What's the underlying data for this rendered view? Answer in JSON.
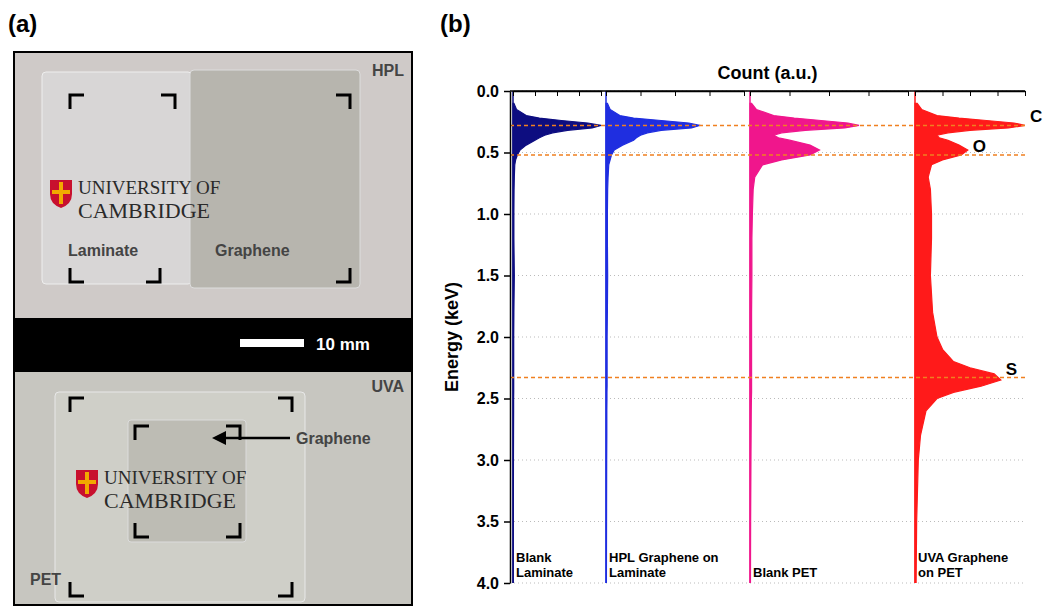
{
  "panels": [
    "(a)",
    "(b)"
  ],
  "photo": {
    "top": {
      "tag": "HPL",
      "sheets": [
        "Laminate",
        "Graphene"
      ]
    },
    "scale_bar": "10 mm",
    "bottom": {
      "tag": "UVA",
      "substrate": "PET",
      "arrow_label": "Graphene"
    },
    "logo": [
      "UNIVERSITY OF",
      "CAMBRIDGE"
    ]
  },
  "chart_data": {
    "type": "area",
    "orientation": "horizontal",
    "xlabel": "Count (a.u.)",
    "ylabel": "Energy (keV)",
    "xlim": [
      0,
      1
    ],
    "xticks": [
      0,
      0.25,
      0.5,
      0.75,
      1
    ],
    "ylim": [
      0,
      4
    ],
    "yticks": [
      {
        "value": 0,
        "label": "0.0"
      },
      0.5,
      {
        "value": 1,
        "label": "1.0"
      },
      1.5,
      {
        "value": 2,
        "label": "2.0"
      },
      2.5,
      {
        "value": 3,
        "label": "3.0"
      },
      3.5,
      {
        "value": 4,
        "label": "4.0"
      }
    ],
    "grid": true,
    "tick_labels": "y",
    "y": [
      0.1,
      0.15,
      0.2,
      0.22,
      0.24,
      0.26,
      0.28,
      0.3,
      0.32,
      0.34,
      0.36,
      0.38,
      0.4,
      0.44,
      0.48,
      0.52,
      0.56,
      0.6,
      0.7,
      0.8,
      1.0,
      1.2,
      1.5,
      1.8,
      2.0,
      2.1,
      2.2,
      2.25,
      2.3,
      2.35,
      2.4,
      2.45,
      2.5,
      2.6,
      2.8,
      3.0,
      3.5,
      4.0
    ],
    "series": [
      {
        "name": "Blank Laminate",
        "color": "#0d0d80",
        "values": [
          0.01,
          0.04,
          0.15,
          0.3,
          0.55,
          0.85,
          1.0,
          0.9,
          0.62,
          0.45,
          0.36,
          0.3,
          0.25,
          0.15,
          0.08,
          0.05,
          0.03,
          0.02,
          0.015,
          0.012,
          0.01,
          0.01,
          0.015,
          0.01,
          0.008,
          0.008,
          0.008,
          0.008,
          0.008,
          0.008,
          0.008,
          0.008,
          0.007,
          0.007,
          0.006,
          0.005,
          0.004,
          0.003
        ]
      },
      {
        "name": "HPL Graphene on Laminate",
        "color": "#1f2ee0",
        "values": [
          0.01,
          0.03,
          0.1,
          0.2,
          0.4,
          0.6,
          0.68,
          0.62,
          0.4,
          0.3,
          0.25,
          0.22,
          0.2,
          0.12,
          0.06,
          0.04,
          0.03,
          0.02,
          0.015,
          0.012,
          0.01,
          0.01,
          0.012,
          0.01,
          0.008,
          0.008,
          0.008,
          0.008,
          0.008,
          0.008,
          0.008,
          0.007,
          0.007,
          0.006,
          0.006,
          0.005,
          0.004,
          0.003
        ]
      },
      {
        "name": "Blank PET",
        "color": "#f0168c",
        "values": [
          0.01,
          0.04,
          0.15,
          0.28,
          0.45,
          0.62,
          0.69,
          0.6,
          0.35,
          0.2,
          0.15,
          0.18,
          0.25,
          0.38,
          0.44,
          0.38,
          0.2,
          0.08,
          0.03,
          0.02,
          0.015,
          0.012,
          0.012,
          0.01,
          0.01,
          0.01,
          0.01,
          0.01,
          0.01,
          0.01,
          0.01,
          0.01,
          0.009,
          0.008,
          0.007,
          0.006,
          0.004,
          0.003
        ]
      },
      {
        "name": "UVA Graphene on PET",
        "color": "#ff1a1a",
        "values": [
          0.02,
          0.06,
          0.2,
          0.4,
          0.65,
          0.9,
          1.0,
          0.85,
          0.5,
          0.3,
          0.2,
          0.22,
          0.3,
          0.4,
          0.48,
          0.42,
          0.25,
          0.15,
          0.12,
          0.14,
          0.15,
          0.15,
          0.14,
          0.16,
          0.2,
          0.25,
          0.35,
          0.5,
          0.72,
          0.78,
          0.6,
          0.35,
          0.2,
          0.1,
          0.05,
          0.03,
          0.015,
          0.01
        ]
      }
    ],
    "annotations": [
      {
        "y": 0.28,
        "label": "C"
      },
      {
        "y": 0.52,
        "label": "O"
      },
      {
        "y": 2.33,
        "label": "S"
      }
    ]
  }
}
